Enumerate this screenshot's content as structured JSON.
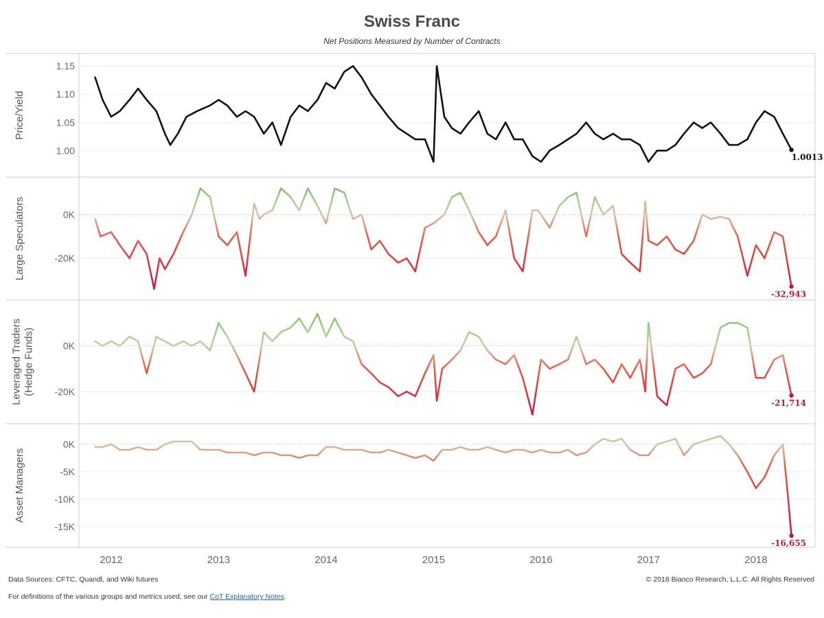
{
  "header": {
    "title": "Swiss Franc",
    "subtitle": "Net Positions Measured by Number of Contracts"
  },
  "footer": {
    "sources": "Data Sources: CFTC, Quandl, and Wiki futures",
    "copyright": "© 2018 Bianco Research, L.L.C. All Rights Reserved",
    "notes_prefix": "For definitions of the various groups and metrics used, see our ",
    "notes_link": "CoT Explanatory Notes",
    "notes_suffix": "."
  },
  "colors": {
    "price_line": "#111111",
    "positive": "#6fbf5f",
    "neutral": "#d9c4a8",
    "negative": "#e8604c",
    "deep_negative": "#c2173d",
    "gridline": "#eeeeee",
    "zeroline": "#bbbbbb",
    "border": "#cccccc"
  },
  "chart_data": {
    "type": "line",
    "x_axis": {
      "ticks": [
        "2012",
        "2013",
        "2014",
        "2015",
        "2016",
        "2017",
        "2018"
      ],
      "range": [
        2011.7,
        2018.55
      ]
    },
    "panels": [
      {
        "id": "price",
        "ylabel": "Price/Yield",
        "ylim": [
          0.965,
          1.16
        ],
        "yticks": [
          1.15,
          1.1,
          1.05,
          1.0
        ],
        "ytick_labels": [
          "1.15",
          "1.10",
          "1.05",
          "1.00"
        ],
        "color_mode": "solid",
        "end_label": "1.0013",
        "x": [
          2011.85,
          2011.92,
          2012.0,
          2012.08,
          2012.17,
          2012.25,
          2012.33,
          2012.42,
          2012.5,
          2012.55,
          2012.62,
          2012.7,
          2012.8,
          2012.92,
          2013.0,
          2013.08,
          2013.17,
          2013.25,
          2013.33,
          2013.42,
          2013.5,
          2013.58,
          2013.67,
          2013.75,
          2013.83,
          2013.92,
          2014.0,
          2014.08,
          2014.17,
          2014.25,
          2014.33,
          2014.42,
          2014.5,
          2014.58,
          2014.67,
          2014.75,
          2014.83,
          2014.92,
          2015.0,
          2015.03,
          2015.1,
          2015.17,
          2015.25,
          2015.33,
          2015.42,
          2015.5,
          2015.58,
          2015.67,
          2015.75,
          2015.83,
          2015.92,
          2016.0,
          2016.08,
          2016.17,
          2016.25,
          2016.33,
          2016.42,
          2016.5,
          2016.58,
          2016.67,
          2016.75,
          2016.83,
          2016.92,
          2017.0,
          2017.08,
          2017.17,
          2017.25,
          2017.33,
          2017.42,
          2017.5,
          2017.58,
          2017.67,
          2017.75,
          2017.83,
          2017.92,
          2018.0,
          2018.08,
          2018.17,
          2018.25,
          2018.33
        ],
        "y": [
          1.13,
          1.09,
          1.06,
          1.07,
          1.09,
          1.11,
          1.09,
          1.07,
          1.03,
          1.01,
          1.03,
          1.06,
          1.07,
          1.08,
          1.09,
          1.08,
          1.06,
          1.07,
          1.06,
          1.03,
          1.05,
          1.01,
          1.06,
          1.08,
          1.07,
          1.09,
          1.12,
          1.11,
          1.14,
          1.15,
          1.13,
          1.1,
          1.08,
          1.06,
          1.04,
          1.03,
          1.02,
          1.02,
          0.98,
          1.15,
          1.06,
          1.04,
          1.03,
          1.05,
          1.07,
          1.03,
          1.02,
          1.05,
          1.02,
          1.02,
          0.99,
          0.98,
          1.0,
          1.01,
          1.02,
          1.03,
          1.05,
          1.03,
          1.02,
          1.03,
          1.02,
          1.02,
          1.01,
          0.98,
          1.0,
          1.0,
          1.01,
          1.03,
          1.05,
          1.04,
          1.05,
          1.03,
          1.01,
          1.01,
          1.02,
          1.05,
          1.07,
          1.06,
          1.03,
          1.0013
        ]
      },
      {
        "id": "large-speculators",
        "ylabel": "Large Speculators",
        "ylim": [
          -36000,
          14000
        ],
        "yticks": [
          0,
          -20000
        ],
        "ytick_labels": [
          "0K",
          "-20K"
        ],
        "color_mode": "diverging",
        "end_label": "-32,943",
        "x": [
          2011.85,
          2011.9,
          2012.0,
          2012.08,
          2012.17,
          2012.25,
          2012.33,
          2012.4,
          2012.45,
          2012.5,
          2012.58,
          2012.67,
          2012.75,
          2012.83,
          2012.92,
          2013.0,
          2013.08,
          2013.17,
          2013.25,
          2013.33,
          2013.38,
          2013.42,
          2013.5,
          2013.58,
          2013.67,
          2013.75,
          2013.83,
          2013.92,
          2014.0,
          2014.08,
          2014.17,
          2014.25,
          2014.33,
          2014.42,
          2014.5,
          2014.58,
          2014.67,
          2014.75,
          2014.83,
          2014.92,
          2015.0,
          2015.05,
          2015.1,
          2015.17,
          2015.25,
          2015.33,
          2015.42,
          2015.5,
          2015.58,
          2015.67,
          2015.75,
          2015.83,
          2015.92,
          2015.97,
          2016.0,
          2016.08,
          2016.17,
          2016.25,
          2016.33,
          2016.42,
          2016.5,
          2016.58,
          2016.67,
          2016.75,
          2016.83,
          2016.92,
          2016.97,
          2017.0,
          2017.08,
          2017.17,
          2017.25,
          2017.33,
          2017.42,
          2017.5,
          2017.58,
          2017.67,
          2017.75,
          2017.83,
          2017.92,
          2018.0,
          2018.08,
          2018.17,
          2018.25,
          2018.33
        ],
        "y": [
          -2000,
          -10000,
          -8000,
          -14000,
          -20000,
          -12000,
          -18000,
          -34000,
          -20000,
          -25000,
          -18000,
          -8000,
          0,
          12000,
          8000,
          -10000,
          -14000,
          -8000,
          -28000,
          5000,
          -2000,
          0,
          2000,
          12000,
          8000,
          2000,
          12000,
          4000,
          -4000,
          12000,
          10000,
          -2000,
          0,
          -16000,
          -12000,
          -18000,
          -22000,
          -20000,
          -26000,
          -6000,
          -4000,
          -2000,
          0,
          8000,
          10000,
          2000,
          -8000,
          -14000,
          -10000,
          2000,
          -20000,
          -26000,
          2000,
          2000,
          0,
          -6000,
          4000,
          8000,
          10000,
          -10000,
          8000,
          0,
          4000,
          -18000,
          -22000,
          -26000,
          6000,
          -12000,
          -14000,
          -10000,
          -16000,
          -18000,
          -12000,
          0,
          -2000,
          -1000,
          -2000,
          -10000,
          -28000,
          -14000,
          -20000,
          -8000,
          -10000,
          -32943
        ]
      },
      {
        "id": "leveraged-traders",
        "ylabel": "Leveraged Traders (Hedge Funds)",
        "ylim": [
          -31000,
          17000
        ],
        "yticks": [
          0,
          -20000
        ],
        "ytick_labels": [
          "0K",
          "-20K"
        ],
        "color_mode": "diverging",
        "end_label": "-21,714",
        "x": [
          2011.85,
          2011.92,
          2012.0,
          2012.08,
          2012.17,
          2012.25,
          2012.33,
          2012.42,
          2012.5,
          2012.58,
          2012.67,
          2012.75,
          2012.83,
          2012.92,
          2013.0,
          2013.08,
          2013.17,
          2013.25,
          2013.33,
          2013.42,
          2013.5,
          2013.58,
          2013.67,
          2013.75,
          2013.83,
          2013.92,
          2014.0,
          2014.08,
          2014.17,
          2014.25,
          2014.33,
          2014.42,
          2014.5,
          2014.58,
          2014.67,
          2014.75,
          2014.83,
          2014.92,
          2015.0,
          2015.03,
          2015.08,
          2015.17,
          2015.25,
          2015.33,
          2015.42,
          2015.5,
          2015.58,
          2015.67,
          2015.75,
          2015.83,
          2015.92,
          2016.0,
          2016.08,
          2016.17,
          2016.25,
          2016.33,
          2016.42,
          2016.5,
          2016.58,
          2016.67,
          2016.75,
          2016.83,
          2016.92,
          2016.97,
          2017.0,
          2017.08,
          2017.17,
          2017.25,
          2017.33,
          2017.42,
          2017.5,
          2017.58,
          2017.67,
          2017.75,
          2017.83,
          2017.92,
          2018.0,
          2018.08,
          2018.17,
          2018.25,
          2018.33
        ],
        "y": [
          2000,
          0,
          2000,
          0,
          4000,
          2000,
          -12000,
          4000,
          2000,
          0,
          2000,
          0,
          2000,
          -2000,
          10000,
          4000,
          -4000,
          -12000,
          -20000,
          6000,
          2000,
          6000,
          8000,
          12000,
          6000,
          14000,
          4000,
          12000,
          4000,
          2000,
          -8000,
          -12000,
          -16000,
          -18000,
          -22000,
          -20000,
          -22000,
          -12000,
          -4000,
          -24000,
          -10000,
          -6000,
          -2000,
          6000,
          4000,
          -2000,
          -6000,
          -8000,
          -4000,
          -14000,
          -30000,
          -6000,
          -10000,
          -8000,
          -6000,
          4000,
          -8000,
          -6000,
          -10000,
          -16000,
          -8000,
          -14000,
          -6000,
          -20000,
          10000,
          -22000,
          -26000,
          -10000,
          -8000,
          -14000,
          -12000,
          -8000,
          8000,
          10000,
          10000,
          8000,
          -14000,
          -14000,
          -6000,
          -4000,
          -21714
        ]
      },
      {
        "id": "asset-managers",
        "ylabel": "Asset Managers",
        "ylim": [
          -17500,
          2500
        ],
        "yticks": [
          0,
          -5000,
          -10000,
          -15000
        ],
        "ytick_labels": [
          "0K",
          "-5K",
          "-10K",
          "-15K"
        ],
        "color_mode": "diverging",
        "end_label": "-16,655",
        "x": [
          2011.85,
          2011.92,
          2012.0,
          2012.08,
          2012.17,
          2012.25,
          2012.33,
          2012.42,
          2012.5,
          2012.58,
          2012.67,
          2012.75,
          2012.83,
          2012.92,
          2013.0,
          2013.08,
          2013.17,
          2013.25,
          2013.33,
          2013.42,
          2013.5,
          2013.58,
          2013.67,
          2013.75,
          2013.83,
          2013.92,
          2014.0,
          2014.08,
          2014.17,
          2014.25,
          2014.33,
          2014.42,
          2014.5,
          2014.58,
          2014.67,
          2014.75,
          2014.83,
          2014.92,
          2015.0,
          2015.08,
          2015.17,
          2015.25,
          2015.33,
          2015.42,
          2015.5,
          2015.58,
          2015.67,
          2015.75,
          2015.83,
          2015.92,
          2016.0,
          2016.08,
          2016.17,
          2016.25,
          2016.33,
          2016.42,
          2016.5,
          2016.58,
          2016.67,
          2016.75,
          2016.83,
          2016.92,
          2017.0,
          2017.08,
          2017.17,
          2017.25,
          2017.33,
          2017.42,
          2017.5,
          2017.58,
          2017.67,
          2017.75,
          2017.83,
          2017.92,
          2018.0,
          2018.08,
          2018.17,
          2018.25,
          2018.3,
          2018.33
        ],
        "y": [
          -500,
          -500,
          0,
          -1000,
          -1000,
          -500,
          -1000,
          -1000,
          0,
          500,
          500,
          500,
          -1000,
          -1000,
          -1000,
          -1500,
          -1500,
          -1500,
          -2000,
          -1500,
          -1500,
          -2000,
          -2000,
          -2500,
          -2000,
          -2000,
          -500,
          -500,
          -1000,
          -1000,
          -1000,
          -1500,
          -1500,
          -1000,
          -1500,
          -2000,
          -2500,
          -2000,
          -3000,
          -1000,
          -1000,
          -500,
          -1000,
          -1000,
          -500,
          -1000,
          -1500,
          -1000,
          -1000,
          -1500,
          -1000,
          -1500,
          -1500,
          -1000,
          -2000,
          -1500,
          0,
          1000,
          500,
          1000,
          -1000,
          -2000,
          -2000,
          0,
          500,
          1000,
          -2000,
          0,
          500,
          1000,
          1500,
          0,
          -2000,
          -5000,
          -8000,
          -6000,
          -2000,
          0,
          -10000,
          -16655
        ]
      }
    ]
  }
}
